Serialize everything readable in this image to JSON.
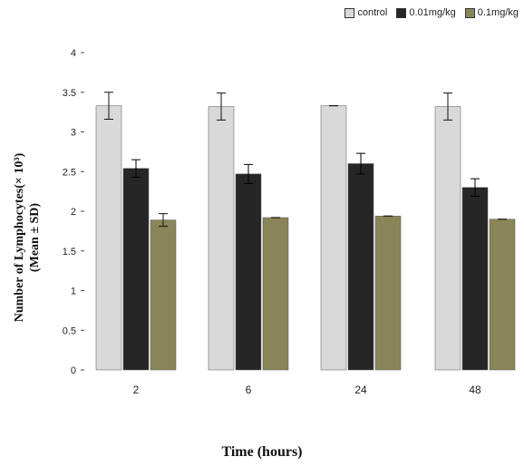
{
  "chart_data": {
    "type": "bar",
    "categories": [
      "2",
      "6",
      "24",
      "48"
    ],
    "series": [
      {
        "name": "control",
        "color": "#d9d9d9",
        "values": [
          3.33,
          3.32,
          3.33,
          3.32
        ],
        "errors": [
          0.17,
          0.17,
          0.0,
          0.17
        ]
      },
      {
        "name": "0.01mg/kg",
        "color": "#262626",
        "values": [
          2.54,
          2.47,
          2.6,
          2.3
        ],
        "errors": [
          0.11,
          0.12,
          0.13,
          0.11
        ]
      },
      {
        "name": "0.1mg/kg",
        "color": "#8a8558",
        "values": [
          1.89,
          1.92,
          1.94,
          1.9
        ],
        "errors": [
          0.08,
          0.0,
          0.0,
          0.0
        ]
      }
    ],
    "ylim": [
      0,
      4
    ],
    "yticks": [
      "0",
      "0.5",
      "1",
      "1.5",
      "2",
      "2.5",
      "3",
      "3.5",
      "4"
    ],
    "xlabel": "Time (hours)",
    "ylabel_line1": "Number of Lymphocytes(× 10³)",
    "ylabel_line2": "(Mean ± SD)",
    "legend_position": "top-right",
    "grid": false
  }
}
